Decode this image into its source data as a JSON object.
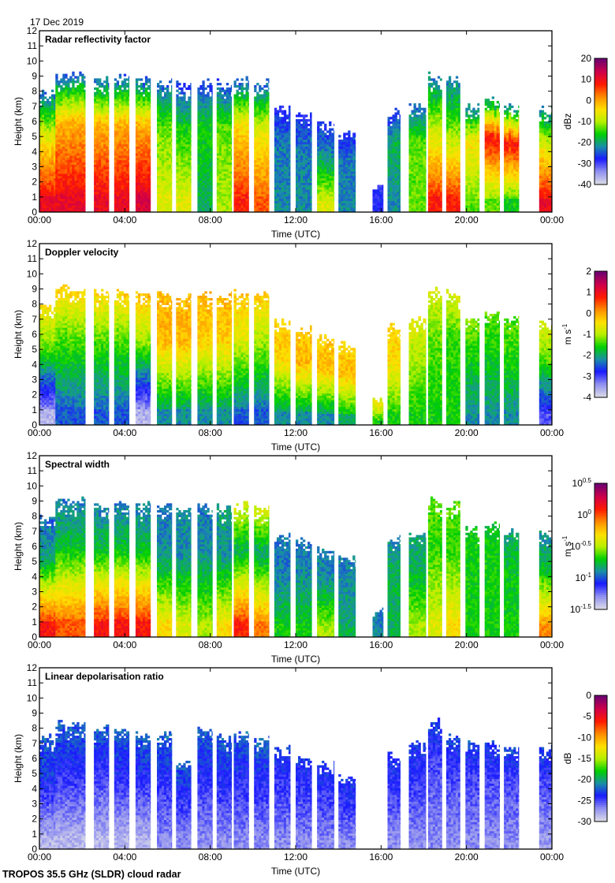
{
  "header": {
    "date": "17 Dec 2019"
  },
  "footer": {
    "instrument": "TROPOS 35.5 GHz (SLDR) cloud radar"
  },
  "chart_data": [
    {
      "type": "heatmap",
      "title": "Radar reflectivity factor",
      "xlabel": "Time (UTC)",
      "ylabel": "Height (km)",
      "x_ticks": [
        "00:00",
        "04:00",
        "08:00",
        "12:00",
        "16:00",
        "20:00",
        "00:00"
      ],
      "y_ticks": [
        "0",
        "1",
        "2",
        "3",
        "4",
        "5",
        "6",
        "7",
        "8",
        "9",
        "10",
        "11",
        "12"
      ],
      "xlim_hours": [
        0,
        24
      ],
      "ylim": [
        0,
        12
      ],
      "colorbar": {
        "label": "dBz",
        "range": [
          -40,
          20
        ],
        "ticks": [
          "20",
          "10",
          "0",
          "-10",
          "-20",
          "-30",
          "-40"
        ]
      },
      "segments": [
        {
          "t0": 0.0,
          "t1": 0.75,
          "top": 8.2,
          "lowcol": 0.85,
          "midcol": 0.55,
          "topcol": 0.25
        },
        {
          "t0": 0.75,
          "t1": 2.15,
          "top": 9.3,
          "lowcol": 0.85,
          "midcol": 0.65,
          "topcol": 0.25
        },
        {
          "t0": 2.55,
          "t1": 3.25,
          "top": 9.1,
          "lowcol": 0.85,
          "midcol": 0.65,
          "topcol": 0.25
        },
        {
          "t0": 3.5,
          "t1": 4.2,
          "top": 9.2,
          "lowcol": 0.85,
          "midcol": 0.65,
          "topcol": 0.25
        },
        {
          "t0": 4.5,
          "t1": 5.2,
          "top": 9.0,
          "lowcol": 0.88,
          "midcol": 0.65,
          "topcol": 0.25
        },
        {
          "t0": 5.5,
          "t1": 6.2,
          "top": 8.9,
          "lowcol": 0.55,
          "midcol": 0.45,
          "topcol": 0.25
        },
        {
          "t0": 6.4,
          "t1": 7.1,
          "top": 8.7,
          "lowcol": 0.55,
          "midcol": 0.4,
          "topcol": 0.22
        },
        {
          "t0": 7.4,
          "t1": 8.1,
          "top": 8.9,
          "lowcol": 0.35,
          "midcol": 0.4,
          "topcol": 0.22
        },
        {
          "t0": 8.3,
          "t1": 9.0,
          "top": 8.8,
          "lowcol": 0.5,
          "midcol": 0.45,
          "topcol": 0.22
        },
        {
          "t0": 9.1,
          "t1": 9.8,
          "top": 8.9,
          "lowcol": 0.8,
          "midcol": 0.6,
          "topcol": 0.25
        },
        {
          "t0": 10.05,
          "t1": 10.75,
          "top": 8.8,
          "lowcol": 0.75,
          "midcol": 0.55,
          "topcol": 0.25
        },
        {
          "t0": 11.0,
          "t1": 11.75,
          "top": 7.0,
          "lowcol": 0.3,
          "midcol": 0.28,
          "topcol": 0.2
        },
        {
          "t0": 12.0,
          "t1": 12.75,
          "top": 6.6,
          "lowcol": 0.3,
          "midcol": 0.28,
          "topcol": 0.2
        },
        {
          "t0": 13.0,
          "t1": 13.8,
          "top": 6.0,
          "lowcol": 0.55,
          "midcol": 0.3,
          "topcol": 0.2
        },
        {
          "t0": 14.0,
          "t1": 14.8,
          "top": 5.5,
          "lowcol": 0.3,
          "midcol": 0.28,
          "topcol": 0.2
        },
        {
          "t0": 15.6,
          "t1": 16.1,
          "top": 2.0,
          "lowcol": 0.2,
          "midcol": 0.2,
          "topcol": 0.18
        },
        {
          "t0": 16.3,
          "t1": 16.9,
          "top": 6.8,
          "lowcol": 0.3,
          "midcol": 0.35,
          "topcol": 0.22
        },
        {
          "t0": 17.3,
          "t1": 18.1,
          "top": 7.2,
          "lowcol": 0.45,
          "midcol": 0.45,
          "topcol": 0.25
        },
        {
          "t0": 18.2,
          "t1": 18.85,
          "top": 9.3,
          "lowcol": 0.8,
          "midcol": 0.5,
          "topcol": 0.28
        },
        {
          "t0": 19.05,
          "t1": 19.7,
          "top": 9.0,
          "lowcol": 0.8,
          "midcol": 0.45,
          "topcol": 0.28
        },
        {
          "t0": 19.95,
          "t1": 20.6,
          "top": 7.3,
          "lowcol": 0.45,
          "midcol": 0.6,
          "topcol": 0.28
        },
        {
          "t0": 20.85,
          "t1": 21.55,
          "top": 7.6,
          "lowcol": 0.45,
          "midcol": 0.82,
          "topcol": 0.3
        },
        {
          "t0": 21.75,
          "t1": 22.45,
          "top": 7.2,
          "lowcol": 0.4,
          "midcol": 0.82,
          "topcol": 0.3
        },
        {
          "t0": 23.4,
          "t1": 24.0,
          "top": 7.0,
          "lowcol": 0.85,
          "midcol": 0.55,
          "topcol": 0.3
        }
      ]
    },
    {
      "type": "heatmap",
      "title": "Doppler velocity",
      "xlabel": "Time (UTC)",
      "ylabel": "Height (km)",
      "x_ticks": [
        "00:00",
        "04:00",
        "08:00",
        "12:00",
        "16:00",
        "20:00",
        "00:00"
      ],
      "y_ticks": [
        "0",
        "1",
        "2",
        "3",
        "4",
        "5",
        "6",
        "7",
        "8",
        "9",
        "10",
        "11",
        "12"
      ],
      "xlim_hours": [
        0,
        24
      ],
      "ylim": [
        0,
        12
      ],
      "colorbar": {
        "label": "m s-1",
        "range": [
          -4,
          2
        ],
        "ticks": [
          "2",
          "1",
          "0",
          "-1",
          "-2",
          "-3",
          "-4"
        ]
      },
      "segments": [
        {
          "t0": 0.0,
          "t1": 0.75,
          "top": 8.2,
          "lowcol": 0.05,
          "midcol": 0.45,
          "topcol": 0.6
        },
        {
          "t0": 0.75,
          "t1": 2.15,
          "top": 9.3,
          "lowcol": 0.25,
          "midcol": 0.45,
          "topcol": 0.62
        },
        {
          "t0": 2.55,
          "t1": 3.25,
          "top": 9.1,
          "lowcol": 0.25,
          "midcol": 0.45,
          "topcol": 0.62
        },
        {
          "t0": 3.5,
          "t1": 4.2,
          "top": 9.2,
          "lowcol": 0.25,
          "midcol": 0.45,
          "topcol": 0.62
        },
        {
          "t0": 4.5,
          "t1": 5.2,
          "top": 9.0,
          "lowcol": 0.05,
          "midcol": 0.5,
          "topcol": 0.65
        },
        {
          "t0": 5.5,
          "t1": 6.2,
          "top": 8.9,
          "lowcol": 0.3,
          "midcol": 0.65,
          "topcol": 0.65
        },
        {
          "t0": 6.4,
          "t1": 7.1,
          "top": 8.7,
          "lowcol": 0.3,
          "midcol": 0.65,
          "topcol": 0.65
        },
        {
          "t0": 7.4,
          "t1": 8.1,
          "top": 8.9,
          "lowcol": 0.3,
          "midcol": 0.62,
          "topcol": 0.65
        },
        {
          "t0": 8.3,
          "t1": 9.0,
          "top": 8.8,
          "lowcol": 0.3,
          "midcol": 0.62,
          "topcol": 0.65
        },
        {
          "t0": 9.1,
          "t1": 9.8,
          "top": 8.9,
          "lowcol": 0.25,
          "midcol": 0.55,
          "topcol": 0.63
        },
        {
          "t0": 10.05,
          "t1": 10.75,
          "top": 8.8,
          "lowcol": 0.25,
          "midcol": 0.5,
          "topcol": 0.63
        },
        {
          "t0": 11.0,
          "t1": 11.75,
          "top": 7.0,
          "lowcol": 0.3,
          "midcol": 0.62,
          "topcol": 0.62
        },
        {
          "t0": 12.0,
          "t1": 12.75,
          "top": 6.6,
          "lowcol": 0.3,
          "midcol": 0.65,
          "topcol": 0.62
        },
        {
          "t0": 13.0,
          "t1": 13.8,
          "top": 6.0,
          "lowcol": 0.3,
          "midcol": 0.65,
          "topcol": 0.62
        },
        {
          "t0": 14.0,
          "t1": 14.8,
          "top": 5.5,
          "lowcol": 0.35,
          "midcol": 0.65,
          "topcol": 0.6
        },
        {
          "t0": 15.6,
          "t1": 16.1,
          "top": 2.0,
          "lowcol": 0.4,
          "midcol": 0.55,
          "topcol": 0.55
        },
        {
          "t0": 16.3,
          "t1": 16.9,
          "top": 6.8,
          "lowcol": 0.4,
          "midcol": 0.6,
          "topcol": 0.62
        },
        {
          "t0": 17.3,
          "t1": 18.1,
          "top": 7.2,
          "lowcol": 0.4,
          "midcol": 0.5,
          "topcol": 0.55
        },
        {
          "t0": 18.2,
          "t1": 18.85,
          "top": 9.3,
          "lowcol": 0.4,
          "midcol": 0.45,
          "topcol": 0.55
        },
        {
          "t0": 19.05,
          "t1": 19.7,
          "top": 9.0,
          "lowcol": 0.4,
          "midcol": 0.42,
          "topcol": 0.55
        },
        {
          "t0": 19.95,
          "t1": 20.6,
          "top": 7.3,
          "lowcol": 0.3,
          "midcol": 0.4,
          "topcol": 0.48
        },
        {
          "t0": 20.85,
          "t1": 21.55,
          "top": 7.6,
          "lowcol": 0.3,
          "midcol": 0.4,
          "topcol": 0.45
        },
        {
          "t0": 21.75,
          "t1": 22.45,
          "top": 7.2,
          "lowcol": 0.3,
          "midcol": 0.42,
          "topcol": 0.45
        },
        {
          "t0": 23.4,
          "t1": 24.0,
          "top": 7.0,
          "lowcol": 0.15,
          "midcol": 0.45,
          "topcol": 0.55
        }
      ]
    },
    {
      "type": "heatmap",
      "title": "Spectral width",
      "xlabel": "Time (UTC)",
      "ylabel": "Height (km)",
      "x_ticks": [
        "00:00",
        "04:00",
        "08:00",
        "12:00",
        "16:00",
        "20:00",
        "00:00"
      ],
      "y_ticks": [
        "0",
        "1",
        "2",
        "3",
        "4",
        "5",
        "6",
        "7",
        "8",
        "9",
        "10",
        "11",
        "12"
      ],
      "xlim_hours": [
        0,
        24
      ],
      "ylim": [
        0,
        12
      ],
      "colorbar": {
        "label": "m s-1",
        "range_log10": [
          -1.5,
          0.5
        ],
        "ticks": [
          "10^0.5",
          "10^0",
          "10^-0.5",
          "10^-1",
          "10^-1.5"
        ]
      },
      "segments": [
        {
          "t0": 0.0,
          "t1": 0.75,
          "top": 8.2,
          "lowcol": 0.82,
          "midcol": 0.33,
          "topcol": 0.26
        },
        {
          "t0": 0.75,
          "t1": 2.15,
          "top": 9.3,
          "lowcol": 0.75,
          "midcol": 0.38,
          "topcol": 0.28
        },
        {
          "t0": 2.55,
          "t1": 3.25,
          "top": 9.1,
          "lowcol": 0.82,
          "midcol": 0.38,
          "topcol": 0.28
        },
        {
          "t0": 3.5,
          "t1": 4.2,
          "top": 9.2,
          "lowcol": 0.82,
          "midcol": 0.38,
          "topcol": 0.28
        },
        {
          "t0": 4.5,
          "t1": 5.2,
          "top": 9.0,
          "lowcol": 0.82,
          "midcol": 0.38,
          "topcol": 0.28
        },
        {
          "t0": 5.5,
          "t1": 6.2,
          "top": 8.9,
          "lowcol": 0.6,
          "midcol": 0.3,
          "topcol": 0.28
        },
        {
          "t0": 6.4,
          "t1": 7.1,
          "top": 8.7,
          "lowcol": 0.55,
          "midcol": 0.3,
          "topcol": 0.3
        },
        {
          "t0": 7.4,
          "t1": 8.1,
          "top": 8.9,
          "lowcol": 0.5,
          "midcol": 0.3,
          "topcol": 0.28
        },
        {
          "t0": 8.3,
          "t1": 9.0,
          "top": 8.8,
          "lowcol": 0.6,
          "midcol": 0.3,
          "topcol": 0.33
        },
        {
          "t0": 9.1,
          "t1": 9.8,
          "top": 8.9,
          "lowcol": 0.8,
          "midcol": 0.35,
          "topcol": 0.55
        },
        {
          "t0": 10.05,
          "t1": 10.75,
          "top": 8.8,
          "lowcol": 0.72,
          "midcol": 0.33,
          "topcol": 0.55
        },
        {
          "t0": 11.0,
          "t1": 11.75,
          "top": 7.0,
          "lowcol": 0.4,
          "midcol": 0.28,
          "topcol": 0.28
        },
        {
          "t0": 12.0,
          "t1": 12.75,
          "top": 6.6,
          "lowcol": 0.4,
          "midcol": 0.3,
          "topcol": 0.28
        },
        {
          "t0": 13.0,
          "t1": 13.8,
          "top": 6.0,
          "lowcol": 0.5,
          "midcol": 0.3,
          "topcol": 0.28
        },
        {
          "t0": 14.0,
          "t1": 14.8,
          "top": 5.5,
          "lowcol": 0.35,
          "midcol": 0.3,
          "topcol": 0.28
        },
        {
          "t0": 15.6,
          "t1": 16.1,
          "top": 2.0,
          "lowcol": 0.3,
          "midcol": 0.28,
          "topcol": 0.28
        },
        {
          "t0": 16.3,
          "t1": 16.9,
          "top": 6.8,
          "lowcol": 0.35,
          "midcol": 0.35,
          "topcol": 0.3
        },
        {
          "t0": 17.3,
          "t1": 18.1,
          "top": 7.2,
          "lowcol": 0.5,
          "midcol": 0.35,
          "topcol": 0.33
        },
        {
          "t0": 18.2,
          "t1": 18.85,
          "top": 9.3,
          "lowcol": 0.55,
          "midcol": 0.42,
          "topcol": 0.45
        },
        {
          "t0": 19.05,
          "t1": 19.7,
          "top": 9.0,
          "lowcol": 0.6,
          "midcol": 0.42,
          "topcol": 0.45
        },
        {
          "t0": 19.95,
          "t1": 20.6,
          "top": 7.3,
          "lowcol": 0.4,
          "midcol": 0.4,
          "topcol": 0.4
        },
        {
          "t0": 20.85,
          "t1": 21.55,
          "top": 7.6,
          "lowcol": 0.4,
          "midcol": 0.4,
          "topcol": 0.38
        },
        {
          "t0": 21.75,
          "t1": 22.45,
          "top": 7.2,
          "lowcol": 0.4,
          "midcol": 0.38,
          "topcol": 0.33
        },
        {
          "t0": 23.4,
          "t1": 24.0,
          "top": 7.0,
          "lowcol": 0.7,
          "midcol": 0.38,
          "topcol": 0.3
        }
      ]
    },
    {
      "type": "heatmap",
      "title": "Linear depolarisation ratio",
      "xlabel": "Time (UTC)",
      "ylabel": "Height (km)",
      "x_ticks": [
        "00:00",
        "04:00",
        "08:00",
        "12:00",
        "16:00",
        "20:00",
        "00:00"
      ],
      "y_ticks": [
        "0",
        "1",
        "2",
        "3",
        "4",
        "5",
        "6",
        "7",
        "8",
        "9",
        "10",
        "11",
        "12"
      ],
      "xlim_hours": [
        0,
        24
      ],
      "ylim": [
        0,
        12
      ],
      "colorbar": {
        "label": "dB",
        "range": [
          -30,
          0
        ],
        "ticks": [
          "0",
          "-5",
          "-10",
          "-15",
          "-20",
          "-25",
          "-30"
        ]
      },
      "segments": [
        {
          "t0": 0.0,
          "t1": 0.75,
          "top": 7.6,
          "lowcol": 0.05,
          "midcol": 0.22,
          "topcol": 0.25
        },
        {
          "t0": 0.75,
          "t1": 2.15,
          "top": 8.5,
          "lowcol": 0.05,
          "midcol": 0.2,
          "topcol": 0.26
        },
        {
          "t0": 2.55,
          "t1": 3.25,
          "top": 8.2,
          "lowcol": 0.05,
          "midcol": 0.18,
          "topcol": 0.26
        },
        {
          "t0": 3.5,
          "t1": 4.2,
          "top": 8.1,
          "lowcol": 0.05,
          "midcol": 0.2,
          "topcol": 0.26
        },
        {
          "t0": 4.5,
          "t1": 5.2,
          "top": 7.8,
          "lowcol": 0.05,
          "midcol": 0.2,
          "topcol": 0.26
        },
        {
          "t0": 5.5,
          "t1": 6.2,
          "top": 7.8,
          "lowcol": 0.1,
          "midcol": 0.2,
          "topcol": 0.26
        },
        {
          "t0": 6.4,
          "t1": 7.1,
          "top": 6.0,
          "lowcol": 0.1,
          "midcol": 0.2,
          "topcol": 0.26
        },
        {
          "t0": 7.4,
          "t1": 8.1,
          "top": 8.2,
          "lowcol": 0.1,
          "midcol": 0.2,
          "topcol": 0.26
        },
        {
          "t0": 8.3,
          "t1": 9.0,
          "top": 7.6,
          "lowcol": 0.1,
          "midcol": 0.2,
          "topcol": 0.26
        },
        {
          "t0": 9.1,
          "t1": 9.8,
          "top": 8.0,
          "lowcol": 0.1,
          "midcol": 0.2,
          "topcol": 0.26
        },
        {
          "t0": 10.05,
          "t1": 10.75,
          "top": 7.5,
          "lowcol": 0.1,
          "midcol": 0.2,
          "topcol": 0.26
        },
        {
          "t0": 11.0,
          "t1": 11.75,
          "top": 6.8,
          "lowcol": 0.1,
          "midcol": 0.18,
          "topcol": 0.22
        },
        {
          "t0": 12.0,
          "t1": 12.75,
          "top": 6.2,
          "lowcol": 0.1,
          "midcol": 0.18,
          "topcol": 0.22
        },
        {
          "t0": 13.0,
          "t1": 13.8,
          "top": 5.8,
          "lowcol": 0.1,
          "midcol": 0.18,
          "topcol": 0.22
        },
        {
          "t0": 14.0,
          "t1": 14.8,
          "top": 5.0,
          "lowcol": 0.1,
          "midcol": 0.18,
          "topcol": 0.22
        },
        {
          "t0": 16.3,
          "t1": 16.9,
          "top": 6.5,
          "lowcol": 0.1,
          "midcol": 0.18,
          "topcol": 0.22
        },
        {
          "t0": 17.3,
          "t1": 18.1,
          "top": 7.2,
          "lowcol": 0.1,
          "midcol": 0.18,
          "topcol": 0.22
        },
        {
          "t0": 18.2,
          "t1": 18.85,
          "top": 8.7,
          "lowcol": 0.1,
          "midcol": 0.16,
          "topcol": 0.24
        },
        {
          "t0": 19.05,
          "t1": 19.7,
          "top": 7.6,
          "lowcol": 0.1,
          "midcol": 0.16,
          "topcol": 0.24
        },
        {
          "t0": 19.95,
          "t1": 20.6,
          "top": 7.2,
          "lowcol": 0.1,
          "midcol": 0.16,
          "topcol": 0.24
        },
        {
          "t0": 20.85,
          "t1": 21.55,
          "top": 7.2,
          "lowcol": 0.1,
          "midcol": 0.16,
          "topcol": 0.24
        },
        {
          "t0": 21.75,
          "t1": 22.45,
          "top": 6.9,
          "lowcol": 0.1,
          "midcol": 0.16,
          "topcol": 0.24
        },
        {
          "t0": 23.4,
          "t1": 24.0,
          "top": 7.0,
          "lowcol": 0.08,
          "midcol": 0.16,
          "topcol": 0.24
        }
      ]
    }
  ],
  "colors": {
    "background": "#ffffff",
    "axis": "#000000",
    "colormap": [
      "#d9d9e8",
      "#8f8ff0",
      "#1a1aff",
      "#1a8fa6",
      "#00d000",
      "#b8f000",
      "#ffe000",
      "#ff8c00",
      "#ff1a00",
      "#d0004a",
      "#700070"
    ]
  }
}
